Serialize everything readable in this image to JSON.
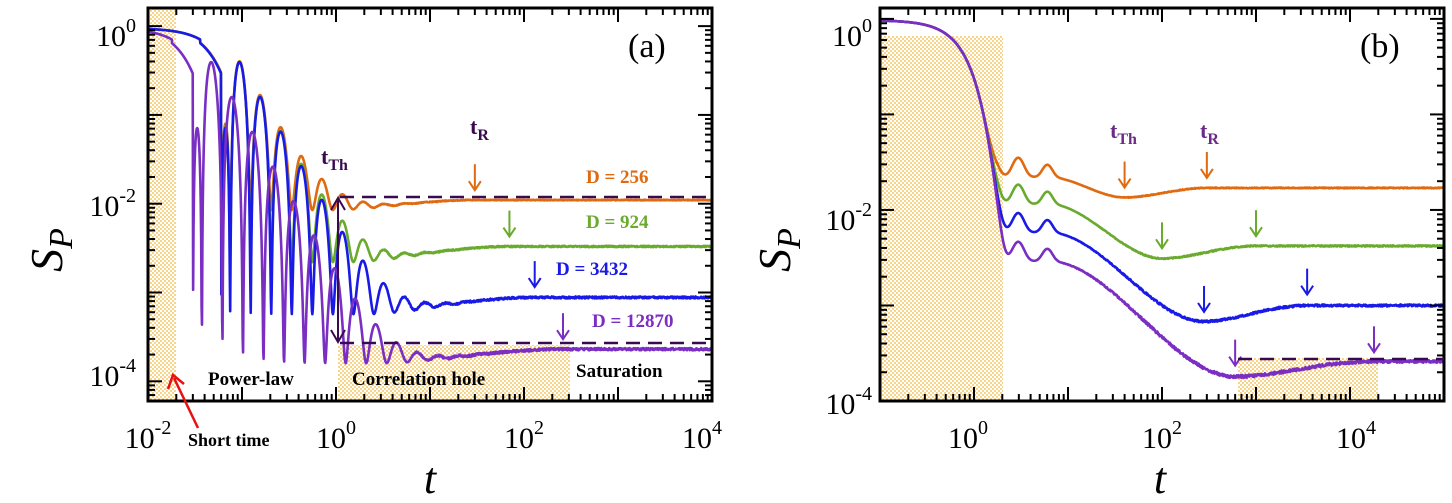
{
  "chart_data": [
    {
      "type": "line",
      "panel_label": "(a)",
      "ylabel_main": "S",
      "ylabel_sub": "P",
      "xlabel": "t",
      "x_scale": "log",
      "y_scale": "log",
      "xlim": [
        0.01,
        10000
      ],
      "ylim": [
        6e-05,
        1.6
      ],
      "x_ticks": [
        {
          "base": "10",
          "exp": "-2",
          "value": 0.01
        },
        {
          "base": "10",
          "exp": "0",
          "value": 1
        },
        {
          "base": "10",
          "exp": "2",
          "value": 100
        },
        {
          "base": "10",
          "exp": "4",
          "value": 10000
        }
      ],
      "y_ticks": [
        {
          "base": "10",
          "exp": "0",
          "value": 1
        },
        {
          "base": "10",
          "exp": "-2",
          "value": 0.01
        },
        {
          "base": "10",
          "exp": "-4",
          "value": 0.0001
        }
      ],
      "series": [
        {
          "name": "D = 256",
          "color": "#e06a10",
          "short_time_end": 0.02,
          "sat": 0.011,
          "dip_min": 0.0085,
          "t_th": 0.9,
          "t_r": 30,
          "osc_start": 0.12,
          "osc_end": 0.8,
          "noise": 0.02
        },
        {
          "name": "D = 924",
          "color": "#6aaa2e",
          "short_time_end": 0.02,
          "sat": 0.0033,
          "dip_min": 0.0022,
          "t_th": 1.3,
          "t_r": 70,
          "osc_start": 0.06,
          "osc_end": 0.4,
          "noise": 0.035
        },
        {
          "name": "D = 3432",
          "color": "#1a1ae6",
          "short_time_end": 0.02,
          "sat": 0.00088,
          "dip_min": 0.00057,
          "t_th": 2,
          "t_r": 130,
          "osc_start": 0.03,
          "osc_end": 0.25,
          "noise": 0.05
        },
        {
          "name": "D = 12870",
          "color": "#7a2ec2",
          "short_time_end": 0.01,
          "sat": 0.00023,
          "dip_min": 0.00016,
          "t_th": 3,
          "t_r": 260,
          "osc_start": 0.012,
          "osc_end": 0.2,
          "noise": 0.06
        }
      ],
      "annotations": {
        "t_th_main": "t",
        "t_th_sub": "Th",
        "t_r_main": "t",
        "t_r_sub": "R",
        "regions": [
          "Short time",
          "Power-law",
          "Correlation hole",
          "Saturation"
        ]
      }
    },
    {
      "type": "line",
      "panel_label": "(b)",
      "ylabel_main": "S",
      "ylabel_sub": "P",
      "xlabel": "t",
      "x_scale": "log",
      "y_scale": "log",
      "xlim": [
        0.1,
        100000
      ],
      "ylim": [
        0.0001,
        1.3
      ],
      "x_ticks": [
        {
          "base": "10",
          "exp": "0",
          "value": 1
        },
        {
          "base": "10",
          "exp": "2",
          "value": 100
        },
        {
          "base": "10",
          "exp": "4",
          "value": 10000
        }
      ],
      "y_ticks": [
        {
          "base": "10",
          "exp": "0",
          "value": 1
        },
        {
          "base": "10",
          "exp": "-2",
          "value": 0.01
        },
        {
          "base": "10",
          "exp": "-4",
          "value": 0.0001
        }
      ],
      "series": [
        {
          "color": "#e06a10",
          "plateau": 0.022,
          "sat": 0.017,
          "dip_min": 0.0135,
          "t_th": 40,
          "t_r": 300,
          "noise": 0.02
        },
        {
          "color": "#6aaa2e",
          "plateau": 0.0115,
          "sat": 0.0042,
          "dip_min": 0.0031,
          "t_th": 100,
          "t_r": 1000,
          "noise": 0.03
        },
        {
          "color": "#1a1ae6",
          "plateau": 0.0058,
          "sat": 0.001,
          "dip_min": 0.00068,
          "t_th": 280,
          "t_r": 3500,
          "noise": 0.05
        },
        {
          "color": "#7a2ec2",
          "plateau": 0.0029,
          "sat": 0.00026,
          "dip_min": 0.00018,
          "t_th": 600,
          "t_r": 18000,
          "noise": 0.07
        }
      ],
      "annotations": {
        "t_th_main": "t",
        "t_th_sub": "Th",
        "t_r_main": "t",
        "t_r_sub": "R"
      }
    }
  ]
}
